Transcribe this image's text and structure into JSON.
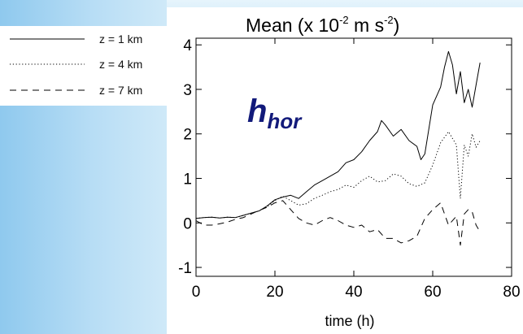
{
  "chart_data": {
    "type": "line",
    "title": "Mean (x 10",
    "title_exp1": "-2",
    "title_mid": " m s",
    "title_exp2": "-2",
    "title_end": ")",
    "xlabel": "time (h)",
    "ylabel": "",
    "xlim": [
      0,
      80
    ],
    "ylim": [
      -1.2,
      4.15
    ],
    "x_ticks": [
      0,
      20,
      40,
      60,
      80
    ],
    "y_ticks": [
      -1,
      0,
      1,
      2,
      3,
      4
    ],
    "x_tick_labels": [
      "0",
      "20",
      "40",
      "60",
      "80"
    ],
    "y_tick_labels": [
      "-1",
      "0",
      "1",
      "2",
      "3",
      "4"
    ],
    "annotation": {
      "main": "h",
      "sub": "hor",
      "color": "#121a7a"
    },
    "legend_position": "left",
    "series": [
      {
        "name": "z = 1 km",
        "dash": "solid",
        "x": [
          0,
          2,
          4,
          6,
          8,
          10,
          12,
          14,
          16,
          18,
          20,
          22,
          24,
          26,
          28,
          30,
          32,
          34,
          36,
          38,
          40,
          42,
          44,
          46,
          47,
          48,
          50,
          52,
          54,
          56,
          57,
          58,
          60,
          62,
          63,
          64,
          65,
          66,
          67,
          68,
          69,
          70,
          71,
          72
        ],
        "y": [
          0.1,
          0.12,
          0.13,
          0.11,
          0.13,
          0.12,
          0.17,
          0.22,
          0.27,
          0.38,
          0.52,
          0.58,
          0.62,
          0.55,
          0.7,
          0.85,
          0.95,
          1.05,
          1.15,
          1.35,
          1.42,
          1.6,
          1.85,
          2.05,
          2.3,
          2.2,
          1.95,
          2.1,
          1.85,
          1.72,
          1.42,
          1.55,
          2.65,
          3.05,
          3.5,
          3.85,
          3.55,
          2.9,
          3.4,
          2.7,
          3.0,
          2.6,
          3.1,
          3.6
        ]
      },
      {
        "name": "z = 4 km",
        "dash": "dotted",
        "x": [
          0,
          2,
          4,
          6,
          8,
          10,
          12,
          14,
          16,
          18,
          20,
          22,
          24,
          26,
          28,
          30,
          32,
          34,
          36,
          38,
          40,
          42,
          44,
          46,
          48,
          50,
          52,
          54,
          56,
          58,
          60,
          62,
          64,
          66,
          67,
          68,
          69,
          70,
          71,
          72
        ],
        "y": [
          0.1,
          0.12,
          0.13,
          0.11,
          0.13,
          0.12,
          0.17,
          0.22,
          0.27,
          0.36,
          0.5,
          0.6,
          0.5,
          0.4,
          0.43,
          0.55,
          0.62,
          0.7,
          0.75,
          0.85,
          0.8,
          0.95,
          1.05,
          0.92,
          0.95,
          1.1,
          1.05,
          0.88,
          0.82,
          0.9,
          1.3,
          1.8,
          2.05,
          1.75,
          0.55,
          1.75,
          1.5,
          2.0,
          1.7,
          1.85
        ]
      },
      {
        "name": "z = 7 km",
        "dash": "dashed",
        "x": [
          0,
          2,
          4,
          6,
          8,
          10,
          12,
          14,
          16,
          18,
          20,
          22,
          24,
          26,
          28,
          30,
          32,
          34,
          36,
          38,
          40,
          42,
          44,
          46,
          48,
          50,
          52,
          54,
          56,
          58,
          60,
          62,
          64,
          66,
          67,
          68,
          69,
          70,
          71,
          72
        ],
        "y": [
          0.05,
          -0.05,
          -0.05,
          -0.02,
          0.02,
          0.08,
          0.12,
          0.2,
          0.28,
          0.35,
          0.45,
          0.5,
          0.3,
          0.1,
          0.0,
          -0.05,
          0.05,
          0.12,
          0.05,
          -0.05,
          -0.1,
          -0.05,
          -0.2,
          -0.15,
          -0.35,
          -0.35,
          -0.45,
          -0.4,
          -0.3,
          0.1,
          0.3,
          0.45,
          -0.05,
          0.15,
          -0.5,
          0.2,
          0.3,
          0.25,
          -0.05,
          -0.2
        ]
      }
    ]
  }
}
